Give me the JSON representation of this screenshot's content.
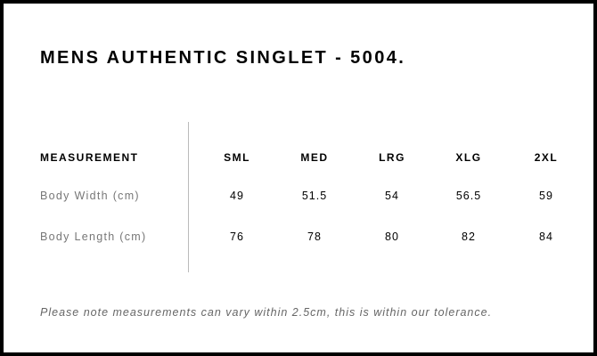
{
  "title": "MENS AUTHENTIC SINGLET - 5004.",
  "table": {
    "header": [
      "MEASUREMENT",
      "SML",
      "MED",
      "LRG",
      "XLG",
      "2XL"
    ],
    "rows": [
      [
        "Body Width (cm)",
        "49",
        "51.5",
        "54",
        "56.5",
        "59"
      ],
      [
        "Body Length (cm)",
        "76",
        "78",
        "80",
        "82",
        "84"
      ]
    ]
  },
  "note": "Please note measurements can vary within 2.5cm, this is within our tolerance."
}
